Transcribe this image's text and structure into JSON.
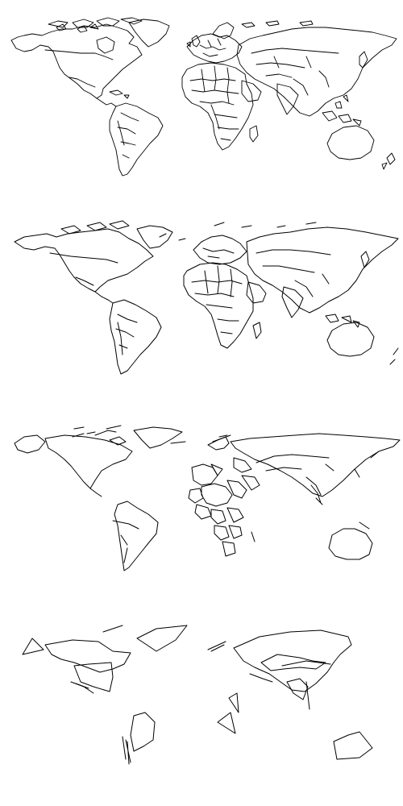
{
  "figure": {
    "description_visible_text": "",
    "stroke_color": "#000000",
    "background_color": "#ffffff"
  },
  "panels": [
    {
      "id": "panel-1",
      "detail_level": "full"
    },
    {
      "id": "panel-2",
      "detail_level": "high"
    },
    {
      "id": "panel-3",
      "detail_level": "medium"
    },
    {
      "id": "panel-4",
      "detail_level": "low"
    }
  ]
}
